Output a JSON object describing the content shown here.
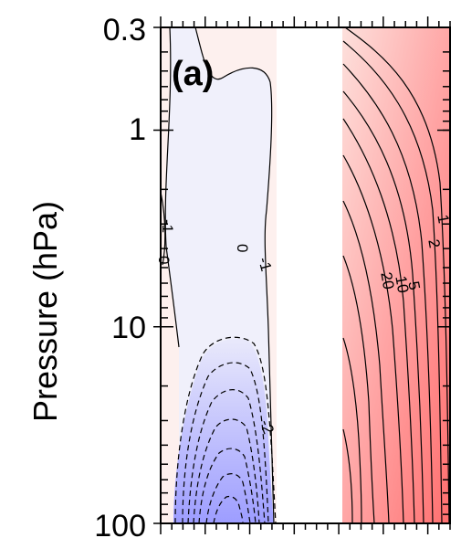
{
  "chart_data": {
    "type": "contour",
    "panel_label": "(a)",
    "ylabel": "Pressure (hPa)",
    "yscale": "log",
    "ylim": [
      100,
      0.3
    ],
    "yticks": [
      0.3,
      1,
      10,
      100
    ],
    "ytick_labels": [
      "0.3",
      "1",
      "10",
      "100"
    ],
    "colors": {
      "positive": "#ff6f6f",
      "negative": "#9d9dff",
      "neutral": "#fdf0ee",
      "negative_light": "#f0f0fb",
      "blank_band": "#ffffff"
    },
    "contour_labels": [
      "0",
      "0",
      "-1",
      "-1",
      "-2",
      "1",
      "2",
      "5",
      "10",
      "20"
    ],
    "contour_values_negative": [
      -1,
      -2,
      -3,
      -4,
      -5,
      -6,
      -7
    ],
    "contour_values_positive": [
      1,
      2,
      5,
      10,
      20,
      30,
      40,
      50,
      60,
      70
    ]
  }
}
